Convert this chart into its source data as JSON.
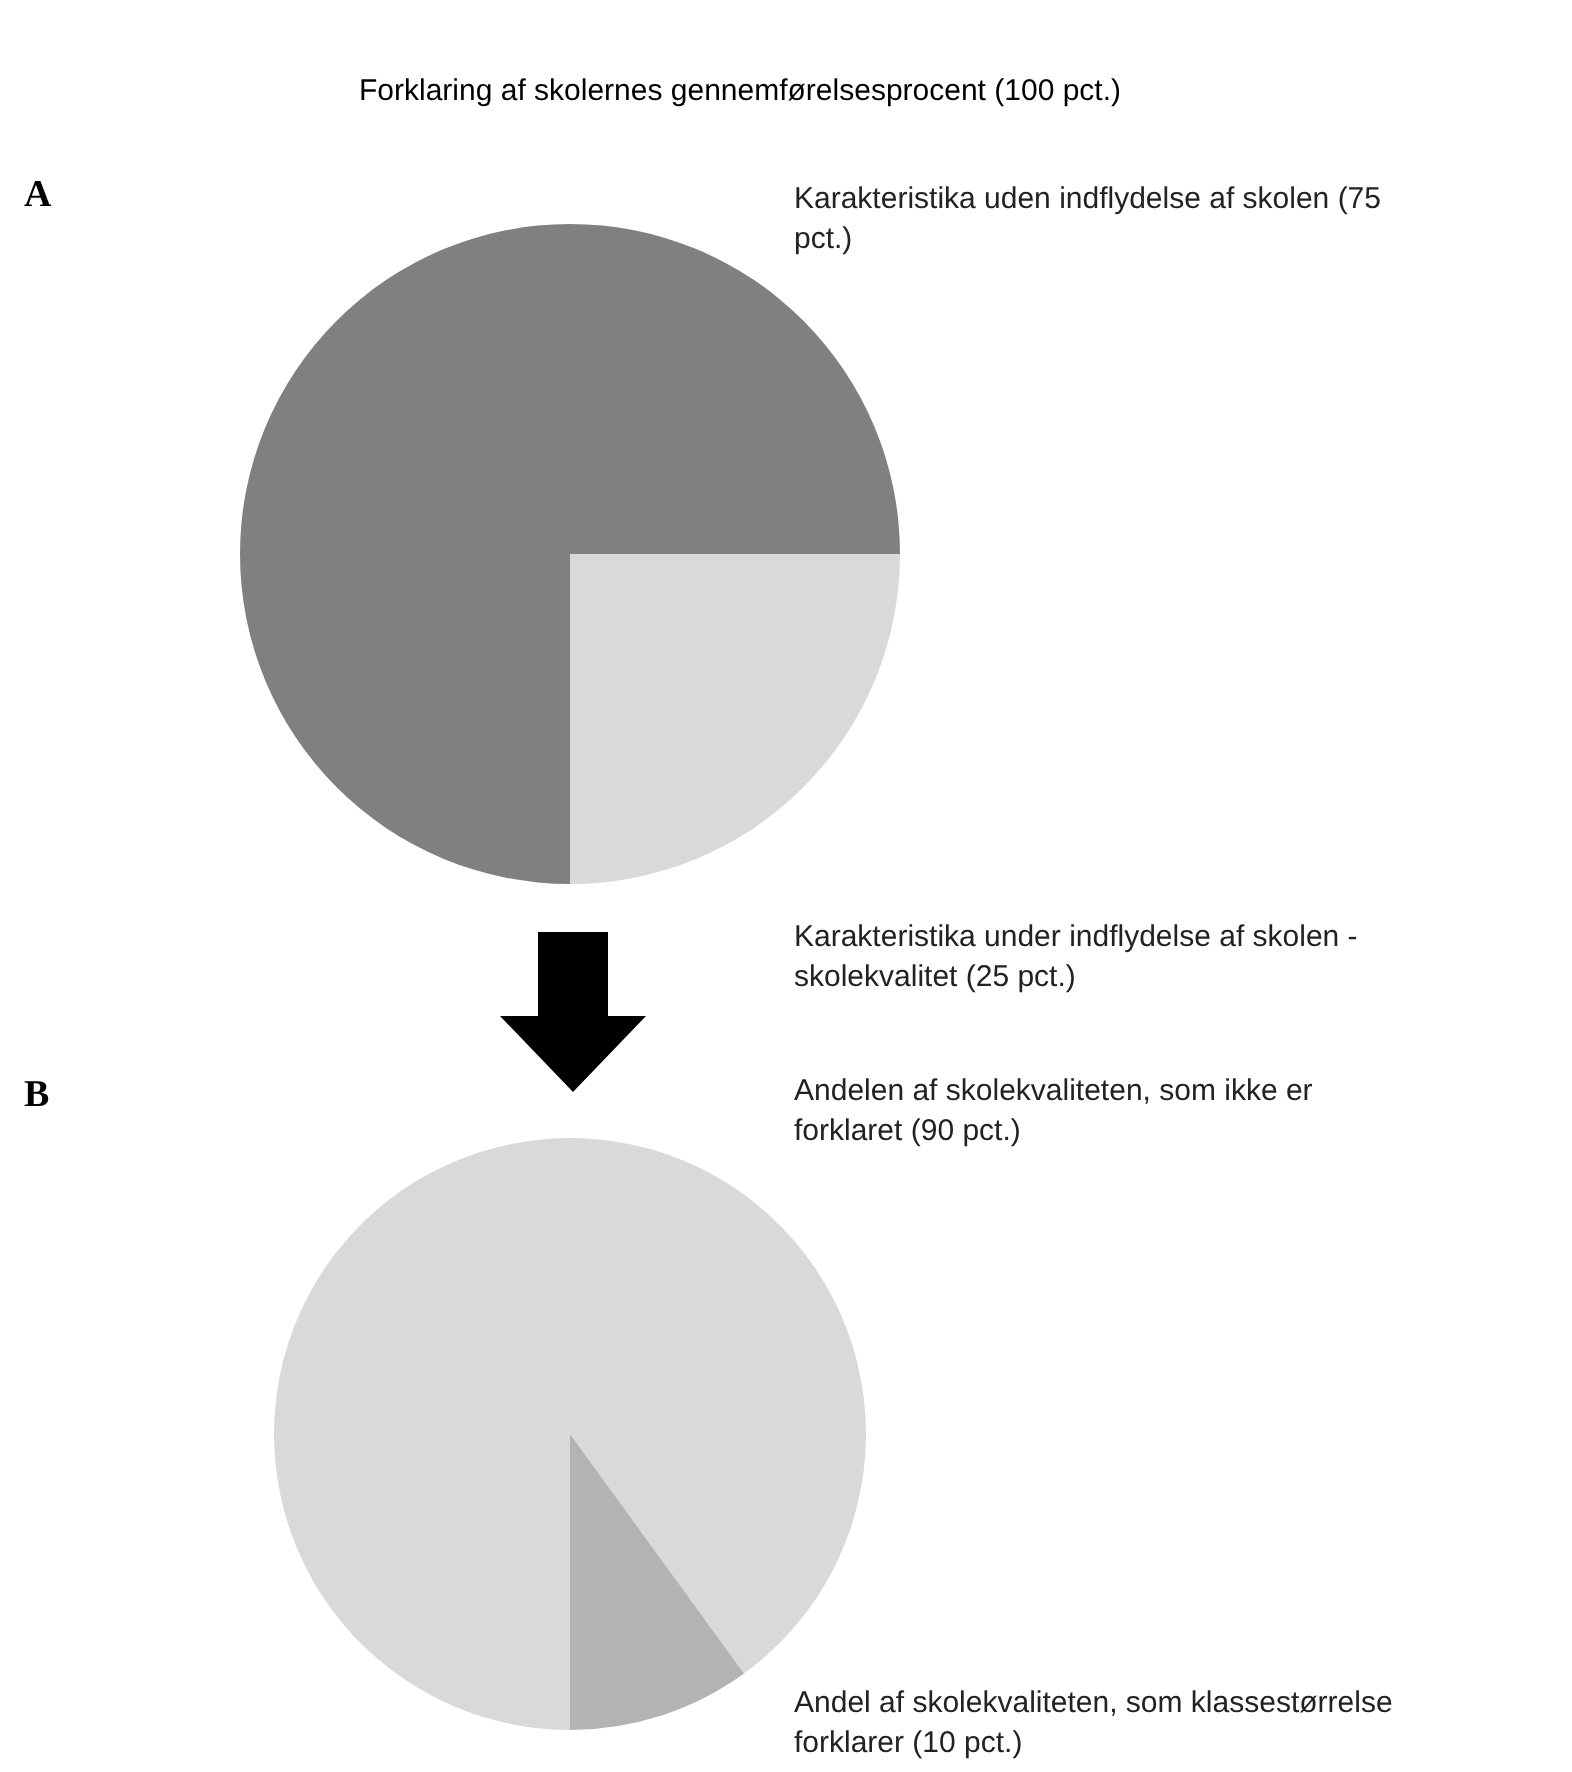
{
  "chart_data": [
    {
      "type": "pie",
      "title": "Forklaring af skolernes gennemførelsesprocent (100  pct.)",
      "annotations": [
        "A"
      ],
      "categories": [
        "Karakteristika uden indflydelse af skolen (75 pct.)",
        "Karakteristika under indflydelse af skolen - skolekvalitet (25 pct.)"
      ],
      "values": [
        75,
        25
      ],
      "colors": [
        "#808080",
        "#d9d9d9"
      ]
    },
    {
      "type": "pie",
      "annotations": [
        "B"
      ],
      "categories": [
        "Andelen af skolekvaliteten, som ikke er forklaret (90 pct.)",
        "Andel af skolekvaliteten, som klassestørrelse forklarer (10 pct.)"
      ],
      "values": [
        90,
        10
      ],
      "colors": [
        "#d9d9d9",
        "#b3b3b3"
      ]
    }
  ]
}
